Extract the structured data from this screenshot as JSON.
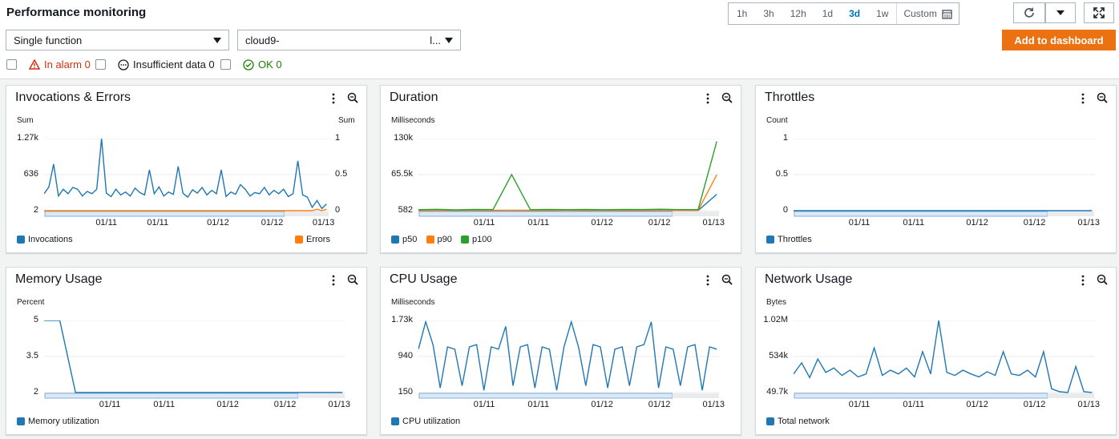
{
  "page": {
    "title": "Performance monitoring"
  },
  "time_ranges": [
    {
      "label": "1h",
      "active": false
    },
    {
      "label": "3h",
      "active": false
    },
    {
      "label": "12h",
      "active": false
    },
    {
      "label": "1d",
      "active": false
    },
    {
      "label": "3d",
      "active": true
    },
    {
      "label": "1w",
      "active": false
    }
  ],
  "custom_label": "Custom",
  "selects": {
    "function_type": "Single function",
    "function_name": "cloud9-",
    "function_name_suffix": "l..."
  },
  "add_to_dashboard": "Add to dashboard",
  "filters": {
    "in_alarm": "In alarm 0",
    "insufficient": "Insufficient data 0",
    "ok": "OK 0"
  },
  "colors": {
    "blue": "#1f77b4",
    "orange": "#ff7f0e",
    "green": "#2ca02c",
    "accent": "#ec7211"
  },
  "chart_data": [
    {
      "type": "line",
      "title": "Invocations & Errors",
      "ylabel": "Sum",
      "ylabel_right": "Sum",
      "y_ticks": [
        "1.27k",
        "636",
        "2"
      ],
      "y_ticks_right": [
        "1",
        "0.5",
        "0"
      ],
      "x_ticks": [
        "01/11",
        "01/11",
        "01/12",
        "01/12",
        "01/13"
      ],
      "series": [
        {
          "name": "Invocations",
          "values": [
            300,
            420,
            820,
            260,
            380,
            300,
            410,
            380,
            260,
            340,
            300,
            380,
            1270,
            310,
            250,
            380,
            280,
            330,
            260,
            400,
            320,
            280,
            720,
            300,
            420,
            260,
            330,
            290,
            780,
            310,
            240,
            370,
            310,
            410,
            280,
            360,
            300,
            720,
            250,
            330,
            290,
            460,
            380,
            260,
            320,
            300,
            410,
            280,
            360,
            300,
            380,
            250,
            300,
            880,
            280,
            240,
            60,
            180,
            40,
            120
          ]
        },
        {
          "name": "Errors",
          "values": [
            0,
            0,
            0,
            0,
            0,
            0,
            0,
            0,
            0,
            0,
            0,
            0,
            0,
            0,
            0,
            0,
            0,
            0,
            0,
            0,
            0,
            0,
            0,
            0,
            0,
            0,
            0,
            0,
            0,
            0,
            0,
            0,
            0,
            0,
            0,
            0,
            0,
            0,
            0,
            0,
            0,
            0,
            0,
            0,
            0,
            0,
            0,
            0,
            0,
            0,
            0,
            0,
            0,
            0,
            0,
            0,
            0,
            0.02,
            0,
            0.02
          ]
        }
      ]
    },
    {
      "type": "line",
      "title": "Duration",
      "ylabel": "Milliseconds",
      "y_ticks": [
        "130k",
        "65.5k",
        "582"
      ],
      "x_ticks": [
        "01/11",
        "01/11",
        "01/12",
        "01/12",
        "01/13"
      ],
      "series": [
        {
          "name": "p50",
          "values": [
            900,
            950,
            880,
            1000,
            920,
            960,
            890,
            940,
            1100,
            900,
            950,
            880,
            920,
            1000,
            960,
            900,
            30000
          ]
        },
        {
          "name": "p90",
          "values": [
            1200,
            1300,
            1250,
            1400,
            1280,
            1350,
            1300,
            1320,
            1500,
            1250,
            1300,
            1280,
            1300,
            1450,
            1350,
            1300,
            65000
          ]
        },
        {
          "name": "p100",
          "values": [
            2500,
            3000,
            2200,
            2800,
            2600,
            65500,
            2400,
            2900,
            2500,
            2700,
            2300,
            2800,
            2600,
            3100,
            2500,
            2600,
            125000
          ]
        }
      ]
    },
    {
      "type": "line",
      "title": "Throttles",
      "ylabel": "Count",
      "y_ticks": [
        "1",
        "0.5",
        "0"
      ],
      "x_ticks": [
        "01/11",
        "01/11",
        "01/12",
        "01/12",
        "01/13"
      ],
      "series": [
        {
          "name": "Throttles",
          "values": [
            0,
            0,
            0,
            0,
            0,
            0,
            0,
            0,
            0,
            0,
            0,
            0
          ]
        }
      ]
    },
    {
      "type": "line",
      "title": "Memory Usage",
      "ylabel": "Percent",
      "y_ticks": [
        "5",
        "3.5",
        "2"
      ],
      "x_ticks": [
        "01/11",
        "01/11",
        "01/12",
        "01/12",
        "01/13"
      ],
      "series": [
        {
          "name": "Memory utilization",
          "values": [
            5,
            5,
            2,
            2,
            2,
            2,
            2,
            2,
            2,
            2,
            2,
            2,
            2,
            2,
            2,
            2,
            2,
            2,
            2,
            2
          ]
        }
      ]
    },
    {
      "type": "line",
      "title": "CPU Usage",
      "ylabel": "Milliseconds",
      "y_ticks": [
        "1.73k",
        "940",
        "150"
      ],
      "x_ticks": [
        "01/11",
        "01/11",
        "01/12",
        "01/12",
        "01/13"
      ],
      "series": [
        {
          "name": "CPU utilization",
          "values": [
            1100,
            1700,
            1200,
            250,
            1150,
            1100,
            300,
            1150,
            1200,
            200,
            1150,
            1100,
            1600,
            300,
            1150,
            1200,
            250,
            1150,
            1100,
            200,
            1150,
            1700,
            1150,
            300,
            1200,
            1150,
            250,
            1100,
            1150,
            300,
            1150,
            1200,
            1700,
            250,
            1150,
            1100,
            300,
            1150,
            1200,
            200,
            1150,
            1100
          ]
        }
      ]
    },
    {
      "type": "line",
      "title": "Network Usage",
      "ylabel": "Bytes",
      "y_ticks": [
        "1.02M",
        "534k",
        "49.7k"
      ],
      "x_ticks": [
        "01/11",
        "01/11",
        "01/12",
        "01/12",
        "01/13"
      ],
      "series": [
        {
          "name": "Total network",
          "values": [
            300000,
            450000,
            250000,
            500000,
            320000,
            380000,
            280000,
            350000,
            260000,
            300000,
            650000,
            280000,
            350000,
            300000,
            380000,
            260000,
            600000,
            300000,
            1020000,
            320000,
            280000,
            350000,
            300000,
            260000,
            330000,
            280000,
            600000,
            300000,
            280000,
            350000,
            260000,
            600000,
            100000,
            60000,
            50000,
            400000,
            60000,
            50000
          ]
        }
      ]
    }
  ]
}
